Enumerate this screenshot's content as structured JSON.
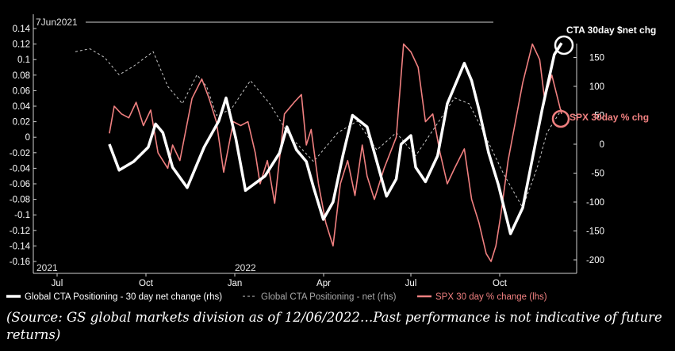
{
  "chart_data": {
    "type": "line",
    "date_marker": "7Jun2021",
    "year_labels": [
      "2021",
      "2022"
    ],
    "x_ticks": [
      "Jul",
      "Oct",
      "Jan",
      "Apr",
      "Jul",
      "Oct"
    ],
    "left_axis": {
      "ticks": [
        "0.14",
        "0.12",
        "0.1",
        "0.08",
        "0.06",
        "0.04",
        "0.02",
        "0",
        "-0.02",
        "-0.04",
        "-0.06",
        "-0.08",
        "-0.1",
        "-0.12",
        "-0.14",
        "-0.16"
      ],
      "range": [
        -0.16,
        0.14
      ]
    },
    "right_axis": {
      "ticks": [
        "150",
        "100",
        "50",
        "0",
        "-50",
        "-100",
        "-150",
        "-200"
      ],
      "range": [
        -200,
        200
      ]
    },
    "annotations": {
      "cta": "CTA 30day $net chg",
      "spx": "SPX 30day % chg"
    },
    "colors": {
      "cta_change": "#ffffff",
      "cta_net": "#c8c8c8",
      "spx": "#f08080"
    },
    "series": [
      {
        "name": "Global CTA Positioning - 30 day net change (rhs)",
        "axis": "right",
        "points": [
          [
            0.07,
            0
          ],
          [
            0.09,
            -45
          ],
          [
            0.12,
            -30
          ],
          [
            0.15,
            -5
          ],
          [
            0.165,
            35
          ],
          [
            0.18,
            20
          ],
          [
            0.2,
            -40
          ],
          [
            0.23,
            -75
          ],
          [
            0.265,
            -5
          ],
          [
            0.295,
            40
          ],
          [
            0.31,
            80
          ],
          [
            0.33,
            10
          ],
          [
            0.35,
            -80
          ],
          [
            0.39,
            -55
          ],
          [
            0.42,
            -15
          ],
          [
            0.435,
            30
          ],
          [
            0.455,
            -10
          ],
          [
            0.475,
            -30
          ],
          [
            0.49,
            -75
          ],
          [
            0.51,
            -130
          ],
          [
            0.53,
            -100
          ],
          [
            0.55,
            -20
          ],
          [
            0.57,
            50
          ],
          [
            0.6,
            30
          ],
          [
            0.615,
            -15
          ],
          [
            0.64,
            -90
          ],
          [
            0.66,
            -60
          ],
          [
            0.67,
            0
          ],
          [
            0.69,
            15
          ],
          [
            0.7,
            -40
          ],
          [
            0.72,
            -65
          ],
          [
            0.745,
            -20
          ],
          [
            0.765,
            70
          ],
          [
            0.8,
            140
          ],
          [
            0.815,
            110
          ],
          [
            0.83,
            60
          ],
          [
            0.85,
            -15
          ],
          [
            0.87,
            -70
          ],
          [
            0.895,
            -155
          ],
          [
            0.92,
            -110
          ],
          [
            0.94,
            -25
          ],
          [
            0.96,
            60
          ],
          [
            0.985,
            155
          ],
          [
            1.0,
            175
          ]
        ]
      },
      {
        "name": "Global CTA Positioning - net (rhs)",
        "axis": "right",
        "points": [
          [
            0.0,
            160
          ],
          [
            0.03,
            165
          ],
          [
            0.06,
            150
          ],
          [
            0.09,
            120
          ],
          [
            0.12,
            135
          ],
          [
            0.16,
            160
          ],
          [
            0.19,
            100
          ],
          [
            0.22,
            70
          ],
          [
            0.25,
            120
          ],
          [
            0.27,
            100
          ],
          [
            0.29,
            50
          ],
          [
            0.32,
            60
          ],
          [
            0.36,
            110
          ],
          [
            0.4,
            70
          ],
          [
            0.44,
            15
          ],
          [
            0.49,
            -30
          ],
          [
            0.54,
            20
          ],
          [
            0.58,
            40
          ],
          [
            0.62,
            -10
          ],
          [
            0.66,
            20
          ],
          [
            0.7,
            -20
          ],
          [
            0.74,
            30
          ],
          [
            0.78,
            80
          ],
          [
            0.81,
            70
          ],
          [
            0.84,
            20
          ],
          [
            0.88,
            -50
          ],
          [
            0.92,
            -110
          ],
          [
            0.95,
            -40
          ],
          [
            0.97,
            20
          ],
          [
            1.0,
            60
          ]
        ]
      },
      {
        "name": "SPX 30 day % change (lhs)",
        "axis": "left",
        "points": [
          [
            0.07,
            0.005
          ],
          [
            0.08,
            0.04
          ],
          [
            0.095,
            0.03
          ],
          [
            0.11,
            0.025
          ],
          [
            0.125,
            0.045
          ],
          [
            0.14,
            0.015
          ],
          [
            0.155,
            0.035
          ],
          [
            0.17,
            -0.02
          ],
          [
            0.19,
            -0.04
          ],
          [
            0.2,
            -0.01
          ],
          [
            0.215,
            -0.03
          ],
          [
            0.24,
            0.05
          ],
          [
            0.26,
            0.075
          ],
          [
            0.275,
            0.05
          ],
          [
            0.29,
            0.02
          ],
          [
            0.305,
            -0.045
          ],
          [
            0.325,
            0.02
          ],
          [
            0.34,
            0.015
          ],
          [
            0.355,
            0.02
          ],
          [
            0.37,
            -0.02
          ],
          [
            0.38,
            -0.06
          ],
          [
            0.395,
            -0.03
          ],
          [
            0.41,
            -0.085
          ],
          [
            0.43,
            0.03
          ],
          [
            0.45,
            0.045
          ],
          [
            0.465,
            0.055
          ],
          [
            0.475,
            -0.01
          ],
          [
            0.485,
            0.01
          ],
          [
            0.5,
            -0.06
          ],
          [
            0.515,
            -0.11
          ],
          [
            0.53,
            -0.14
          ],
          [
            0.545,
            -0.06
          ],
          [
            0.56,
            -0.03
          ],
          [
            0.575,
            -0.075
          ],
          [
            0.59,
            -0.01
          ],
          [
            0.6,
            -0.05
          ],
          [
            0.615,
            -0.08
          ],
          [
            0.635,
            -0.04
          ],
          [
            0.66,
            0.0
          ],
          [
            0.675,
            0.12
          ],
          [
            0.69,
            0.11
          ],
          [
            0.705,
            0.09
          ],
          [
            0.72,
            0.02
          ],
          [
            0.735,
            0.03
          ],
          [
            0.75,
            -0.02
          ],
          [
            0.765,
            -0.06
          ],
          [
            0.78,
            -0.04
          ],
          [
            0.8,
            -0.015
          ],
          [
            0.815,
            -0.08
          ],
          [
            0.83,
            -0.11
          ],
          [
            0.845,
            -0.15
          ],
          [
            0.855,
            -0.16
          ],
          [
            0.865,
            -0.14
          ],
          [
            0.875,
            -0.1
          ],
          [
            0.89,
            -0.03
          ],
          [
            0.905,
            0.02
          ],
          [
            0.92,
            0.07
          ],
          [
            0.94,
            0.12
          ],
          [
            0.955,
            0.1
          ],
          [
            0.965,
            0.05
          ],
          [
            0.98,
            0.08
          ],
          [
            1.0,
            0.03
          ]
        ]
      }
    ]
  },
  "caption": "(Source: GS global markets division as of 12/06/2022…Past performance is not indicative of future returns)"
}
